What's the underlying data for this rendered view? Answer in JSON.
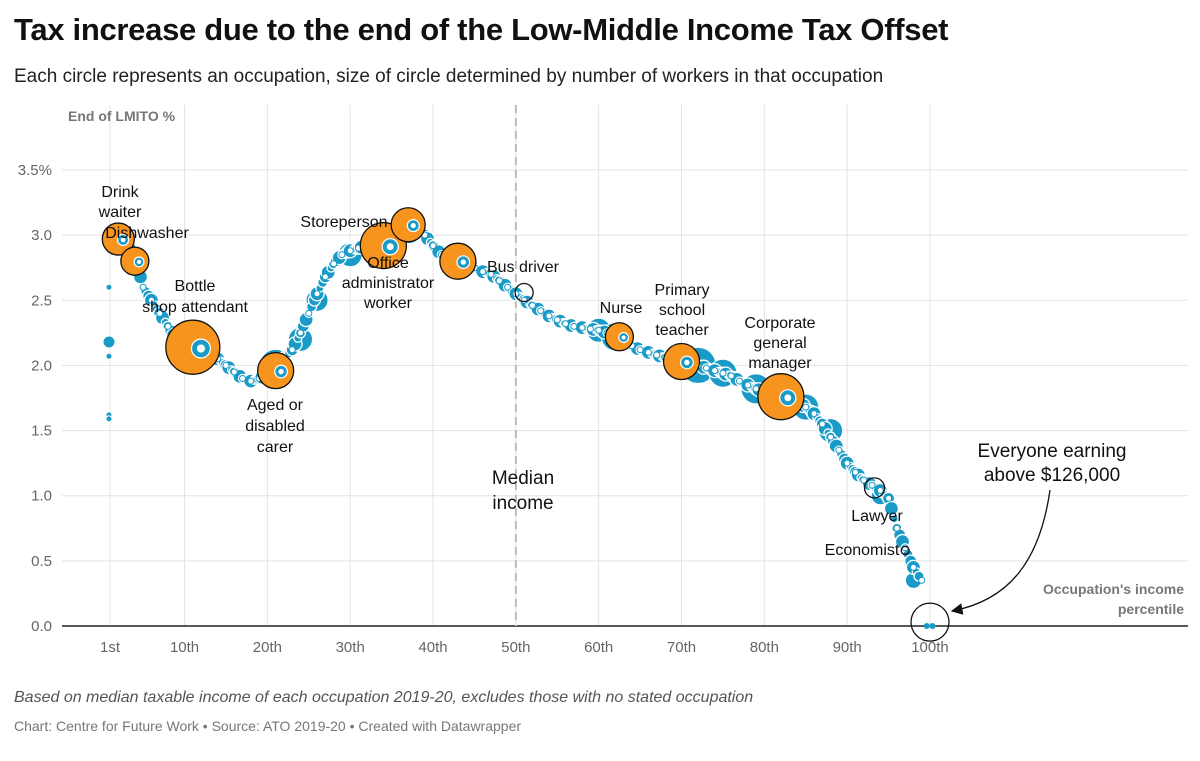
{
  "header": {
    "title": "Tax increase due to the end of the Low-Middle Income Tax Offset",
    "subtitle": "Each circle represents an occupation, size of circle determined by number of workers in that occupation"
  },
  "footer": {
    "note": "Based on median taxable income of each occupation 2019-20, excludes those with no stated occupation",
    "credit": "Chart: Centre for Future Work • Source: ATO 2019-20 • Created with Datawrapper"
  },
  "colors": {
    "bubble": "#1a9bc7",
    "highlight": "#f7941d",
    "grid": "#e3e3e3",
    "median_line": "#bbbbbb"
  },
  "chart_data": {
    "type": "scatter",
    "ylabel": "End of LMITO %",
    "xlabel": "Occupation's income percentile",
    "ylim": [
      0,
      3.5
    ],
    "y_ticks": [
      "0.0",
      "0.5",
      "1.0",
      "1.5",
      "2.0",
      "2.5",
      "3.0",
      "3.5%"
    ],
    "x_ticks": [
      "1st",
      "10th",
      "20th",
      "30th",
      "40th",
      "50th",
      "60th",
      "70th",
      "80th",
      "90th",
      "100th"
    ],
    "median_label": "Median income",
    "callout": "Everyone earning above $126,000",
    "curve": [
      [
        1,
        3.0
      ],
      [
        2,
        2.95
      ],
      [
        3,
        2.92
      ],
      [
        4,
        2.85
      ],
      [
        5,
        2.6
      ],
      [
        6,
        2.5
      ],
      [
        7,
        2.4
      ],
      [
        8,
        2.3
      ],
      [
        9,
        2.2
      ],
      [
        10,
        2.15
      ],
      [
        11,
        2.12
      ],
      [
        12,
        2.1
      ],
      [
        13,
        2.08
      ],
      [
        14,
        2.05
      ],
      [
        15,
        2.0
      ],
      [
        16,
        1.95
      ],
      [
        17,
        1.9
      ],
      [
        18,
        1.88
      ],
      [
        19,
        1.9
      ],
      [
        20,
        1.93
      ],
      [
        21,
        1.97
      ],
      [
        22,
        2.05
      ],
      [
        23,
        2.12
      ],
      [
        24,
        2.25
      ],
      [
        25,
        2.4
      ],
      [
        26,
        2.55
      ],
      [
        27,
        2.68
      ],
      [
        28,
        2.78
      ],
      [
        29,
        2.85
      ],
      [
        30,
        2.88
      ],
      [
        31,
        2.9
      ],
      [
        32,
        2.92
      ],
      [
        33,
        2.94
      ],
      [
        34,
        2.95
      ],
      [
        35,
        2.97
      ],
      [
        36,
        3.0
      ],
      [
        37,
        3.05
      ],
      [
        38,
        3.05
      ],
      [
        39,
        3.0
      ],
      [
        40,
        2.92
      ],
      [
        41,
        2.85
      ],
      [
        42,
        2.82
      ],
      [
        43,
        2.8
      ],
      [
        44,
        2.78
      ],
      [
        45,
        2.75
      ],
      [
        46,
        2.72
      ],
      [
        47,
        2.7
      ],
      [
        48,
        2.65
      ],
      [
        49,
        2.6
      ],
      [
        50,
        2.55
      ],
      [
        51,
        2.5
      ],
      [
        52,
        2.46
      ],
      [
        53,
        2.42
      ],
      [
        54,
        2.38
      ],
      [
        55,
        2.35
      ],
      [
        56,
        2.32
      ],
      [
        57,
        2.3
      ],
      [
        58,
        2.29
      ],
      [
        59,
        2.28
      ],
      [
        60,
        2.27
      ],
      [
        61,
        2.25
      ],
      [
        62,
        2.22
      ],
      [
        63,
        2.18
      ],
      [
        64,
        2.15
      ],
      [
        65,
        2.12
      ],
      [
        66,
        2.1
      ],
      [
        67,
        2.08
      ],
      [
        68,
        2.06
      ],
      [
        69,
        2.04
      ],
      [
        70,
        2.03
      ],
      [
        71,
        2.02
      ],
      [
        72,
        2.0
      ],
      [
        73,
        1.98
      ],
      [
        74,
        1.96
      ],
      [
        75,
        1.94
      ],
      [
        76,
        1.92
      ],
      [
        77,
        1.88
      ],
      [
        78,
        1.85
      ],
      [
        79,
        1.82
      ],
      [
        80,
        1.8
      ],
      [
        81,
        1.78
      ],
      [
        82,
        1.76
      ],
      [
        83,
        1.74
      ],
      [
        84,
        1.72
      ],
      [
        85,
        1.68
      ],
      [
        86,
        1.63
      ],
      [
        87,
        1.55
      ],
      [
        88,
        1.45
      ],
      [
        89,
        1.35
      ],
      [
        90,
        1.25
      ],
      [
        91,
        1.18
      ],
      [
        92,
        1.12
      ],
      [
        93,
        1.08
      ],
      [
        94,
        1.04
      ],
      [
        95,
        0.98
      ],
      [
        96,
        0.75
      ],
      [
        97,
        0.6
      ],
      [
        98,
        0.45
      ],
      [
        99,
        0.35
      ]
    ],
    "big_bubbles": [
      [
        4,
        2.8,
        14
      ],
      [
        12,
        2.1,
        18
      ],
      [
        21,
        2.0,
        16
      ],
      [
        24,
        2.2,
        12
      ],
      [
        26,
        2.5,
        11
      ],
      [
        30,
        2.85,
        12
      ],
      [
        34,
        2.92,
        20
      ],
      [
        37,
        3.05,
        15
      ],
      [
        43,
        2.8,
        16
      ],
      [
        60,
        2.27,
        12
      ],
      [
        62,
        2.22,
        14
      ],
      [
        70,
        2.03,
        17
      ],
      [
        72,
        2.0,
        18
      ],
      [
        75,
        1.94,
        14
      ],
      [
        79,
        1.82,
        15
      ],
      [
        82,
        1.76,
        20
      ],
      [
        85,
        1.68,
        13
      ],
      [
        88,
        1.5,
        12
      ],
      [
        94,
        1.0,
        9
      ],
      [
        98,
        0.35,
        8
      ]
    ],
    "outliers": [
      [
        1,
        2.18,
        6
      ],
      [
        1,
        2.6,
        3
      ],
      [
        1,
        2.07,
        3
      ],
      [
        1,
        1.62,
        3
      ],
      [
        1,
        1.59,
        3
      ]
    ],
    "everyone_top": [
      [
        99.6,
        0.0,
        3
      ],
      [
        100.3,
        0.0,
        3
      ]
    ],
    "highlighted": [
      {
        "label": "Drink waiter",
        "x": 2,
        "y": 2.97,
        "r": 16,
        "fill": true
      },
      {
        "label": "Dishwasher",
        "x": 4,
        "y": 2.8,
        "r": 14,
        "fill": true
      },
      {
        "label": "Bottle shop attendant",
        "x": 11,
        "y": 2.14,
        "r": 27,
        "fill": true
      },
      {
        "label": "Aged or disabled carer",
        "x": 21,
        "y": 1.96,
        "r": 18,
        "fill": true
      },
      {
        "label": "Storeperson",
        "x": 34,
        "y": 2.92,
        "r": 23,
        "fill": true
      },
      {
        "label": "Office administrator worker",
        "x": 37,
        "y": 3.08,
        "r": 17,
        "fill": true
      },
      {
        "label": "Bus driver",
        "x": 43,
        "y": 2.8,
        "r": 18,
        "fill": true
      },
      {
        "label": "Bus driver small",
        "x": 51,
        "y": 2.56,
        "r": 9,
        "fill": false
      },
      {
        "label": "Nurse",
        "x": 62.5,
        "y": 2.22,
        "r": 14,
        "fill": true
      },
      {
        "label": "Primary school teacher",
        "x": 70,
        "y": 2.03,
        "r": 18,
        "fill": true
      },
      {
        "label": "Corporate general manager",
        "x": 82,
        "y": 1.76,
        "r": 23,
        "fill": true
      },
      {
        "label": "Lawyer",
        "x": 93.3,
        "y": 1.06,
        "r": 10,
        "fill": false
      },
      {
        "label": "Economist",
        "x": 97,
        "y": 0.58,
        "r": 4,
        "fill": false
      },
      {
        "label": "Everyone above 126k",
        "x": 100,
        "y": 0.03,
        "r": 19,
        "fill": false
      }
    ],
    "annotations": {
      "drink_waiter": [
        "Drink",
        "waiter"
      ],
      "dishwasher": [
        "Dishwasher"
      ],
      "bottle_shop": [
        "Bottle",
        "shop attendant"
      ],
      "aged_carer": [
        "Aged or",
        "disabled",
        "carer"
      ],
      "storeperson": [
        "Storeperson"
      ],
      "office_admin": [
        "Office",
        "administrator",
        "worker"
      ],
      "bus_driver": [
        "Bus driver"
      ],
      "nurse": [
        "Nurse"
      ],
      "teacher": [
        "Primary",
        "school",
        "teacher"
      ],
      "manager": [
        "Corporate",
        "general",
        "manager"
      ],
      "lawyer": [
        "Lawyer"
      ],
      "economist": [
        "Economist"
      ],
      "everyone": [
        "Everyone earning",
        "above $126,000"
      ],
      "median": [
        "Median",
        "income"
      ],
      "xtitle": [
        "Occupation's income",
        "percentile"
      ]
    }
  }
}
